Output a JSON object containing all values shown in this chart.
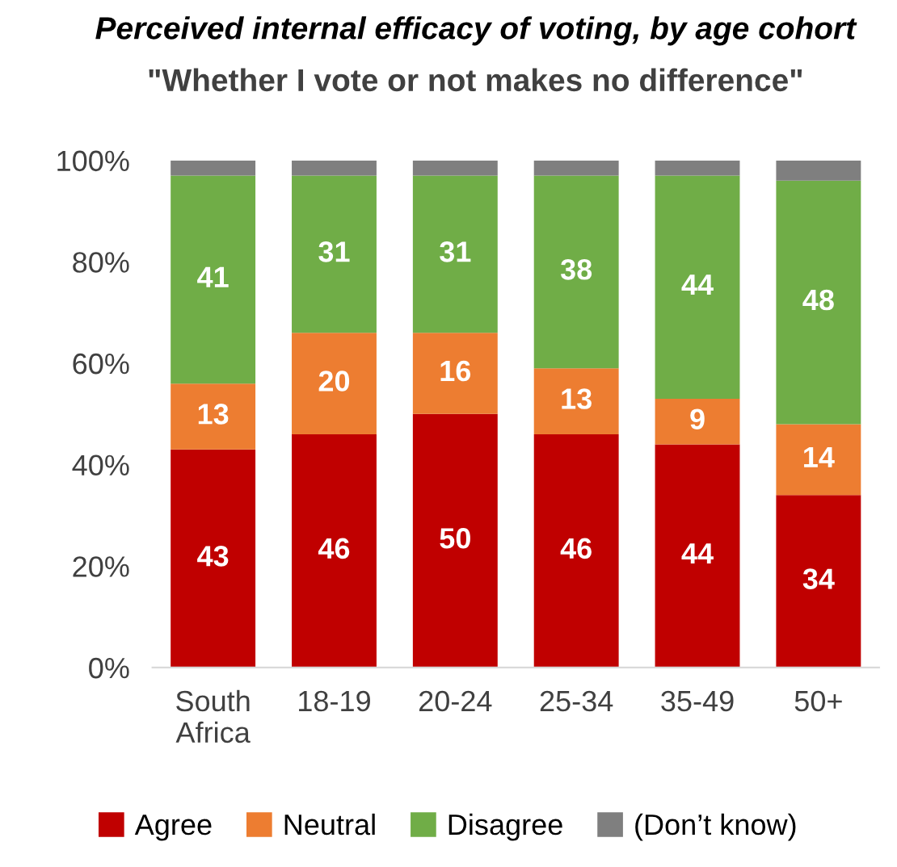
{
  "chart_data": {
    "type": "bar",
    "stacked": true,
    "title": "Perceived internal efficacy of voting, by age cohort",
    "subtitle": "\"Whether I vote or not makes no difference\"",
    "categories": [
      "South\nAfrica",
      "18-19",
      "20-24",
      "25-34",
      "35-49",
      "50+"
    ],
    "series": [
      {
        "name": "Agree",
        "color": "#c00000",
        "values": [
          43,
          46,
          50,
          46,
          44,
          34
        ],
        "value_labels": [
          "43",
          "46",
          "50",
          "46",
          "44",
          "34"
        ]
      },
      {
        "name": "Neutral",
        "color": "#ed7d31",
        "values": [
          13,
          20,
          16,
          13,
          9,
          14
        ],
        "value_labels": [
          "13",
          "20",
          "16",
          "13",
          "9",
          "14"
        ]
      },
      {
        "name": "Disagree",
        "color": "#70ad47",
        "values": [
          41,
          31,
          31,
          38,
          44,
          48
        ],
        "value_labels": [
          "41",
          "31",
          "31",
          "38",
          "44",
          "48"
        ]
      },
      {
        "name": "(Don’t know)",
        "color": "#7f7f7f",
        "values": [
          3,
          3,
          3,
          3,
          3,
          4
        ]
      }
    ],
    "ylim": [
      0,
      100
    ],
    "yticks": [
      {
        "value": 0,
        "label": "0%"
      },
      {
        "value": 20,
        "label": "20%"
      },
      {
        "value": 40,
        "label": "40%"
      },
      {
        "value": 60,
        "label": "60%"
      },
      {
        "value": 80,
        "label": "80%"
      },
      {
        "value": 100,
        "label": "100%"
      }
    ],
    "legend": "bottom",
    "grid": false
  }
}
